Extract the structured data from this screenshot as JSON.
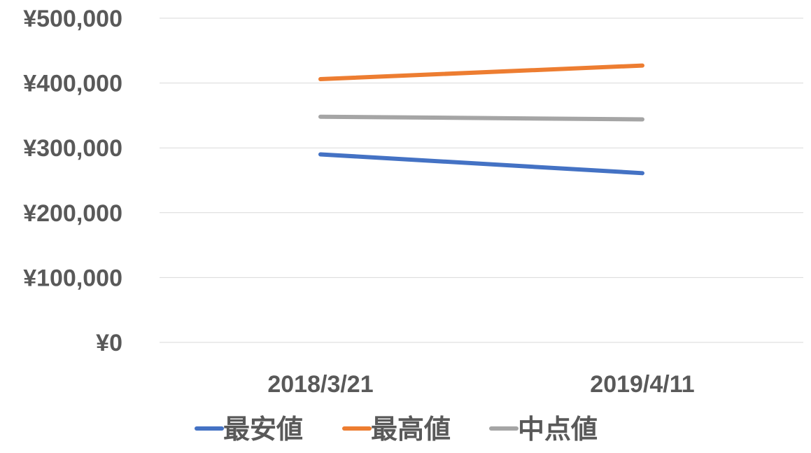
{
  "chart_data": {
    "type": "line",
    "categories": [
      "2018/3/21",
      "2019/4/11"
    ],
    "series": [
      {
        "name": "最安値",
        "values": [
          290000,
          261000
        ],
        "color": "#4472C4"
      },
      {
        "name": "最高値",
        "values": [
          406000,
          427000
        ],
        "color": "#ED7D31"
      },
      {
        "name": "中点値",
        "values": [
          348000,
          344000
        ],
        "color": "#A5A5A5"
      }
    ],
    "y_ticks": [
      "¥0",
      "¥100,000",
      "¥200,000",
      "¥300,000",
      "¥400,000",
      "¥500,000"
    ],
    "ylim": [
      0,
      500000
    ],
    "grid": true,
    "legend_position": "bottom",
    "gridline_color": "#D9D9D9",
    "text_color": "#595959"
  }
}
